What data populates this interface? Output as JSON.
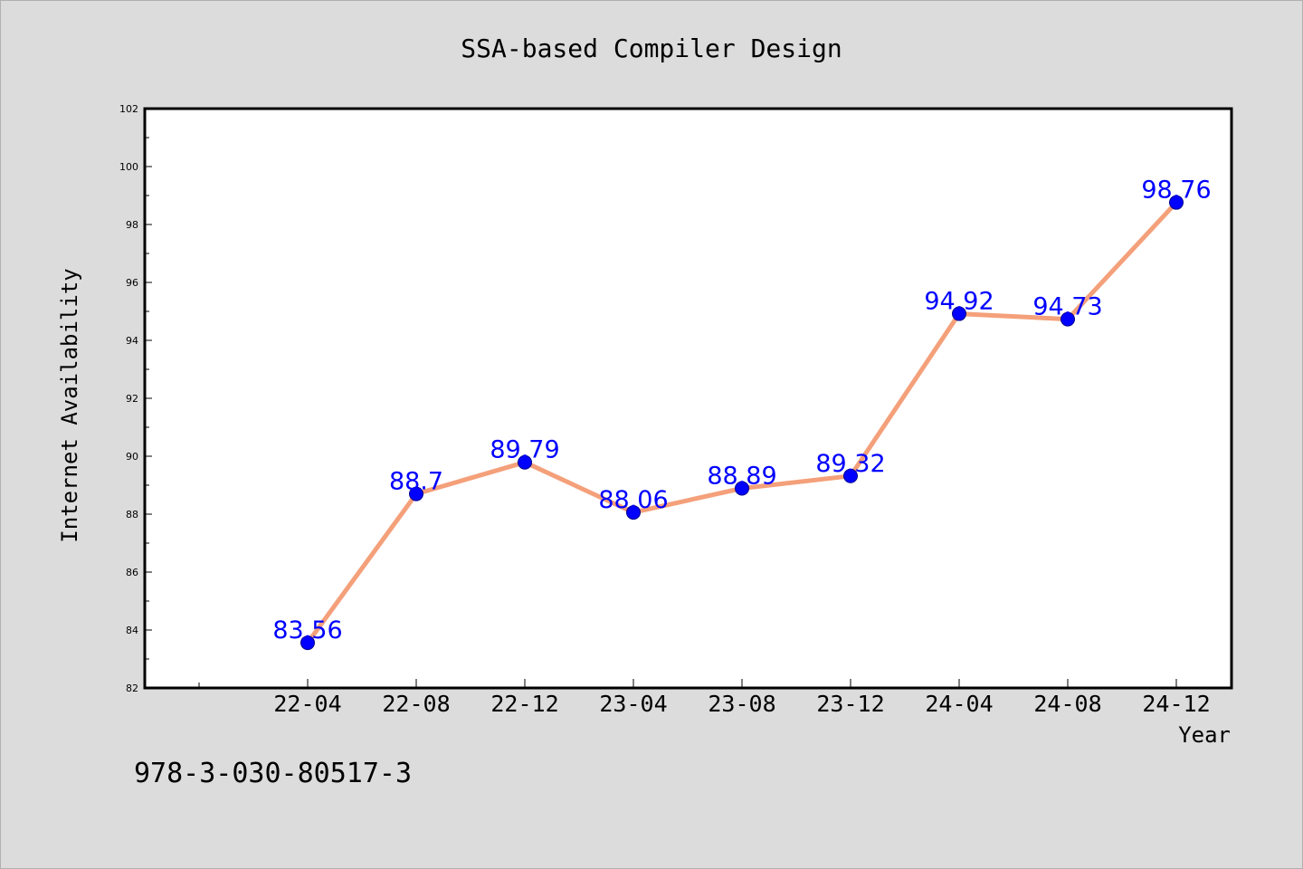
{
  "chart_data": {
    "type": "line",
    "title": "SSA-based Compiler Design",
    "xlabel": "Year",
    "ylabel": "Internet Availability",
    "categories": [
      "22-04",
      "22-08",
      "22-12",
      "23-04",
      "23-08",
      "23-12",
      "24-04",
      "24-08",
      "24-12"
    ],
    "values": [
      83.56,
      88.7,
      89.79,
      88.06,
      88.89,
      89.32,
      94.92,
      94.73,
      98.76
    ],
    "data_labels": [
      "83.56",
      "88.7",
      "89.79",
      "88.06",
      "88.89",
      "89.32",
      "94.92",
      "94.73",
      "98.76"
    ],
    "ylim": [
      82,
      102
    ],
    "yticks": [
      "82",
      "84",
      "86",
      "88",
      "90",
      "92",
      "94",
      "96",
      "98",
      "100",
      "102"
    ],
    "grid": false,
    "legend": "none",
    "colors": {
      "line": "#f4a07a",
      "marker": "#0000ff",
      "data_label": "#0000ff",
      "background": "#dcdcdc",
      "plot_area": "#ffffff"
    }
  },
  "footer": {
    "isbn": "978-3-030-80517-3"
  }
}
